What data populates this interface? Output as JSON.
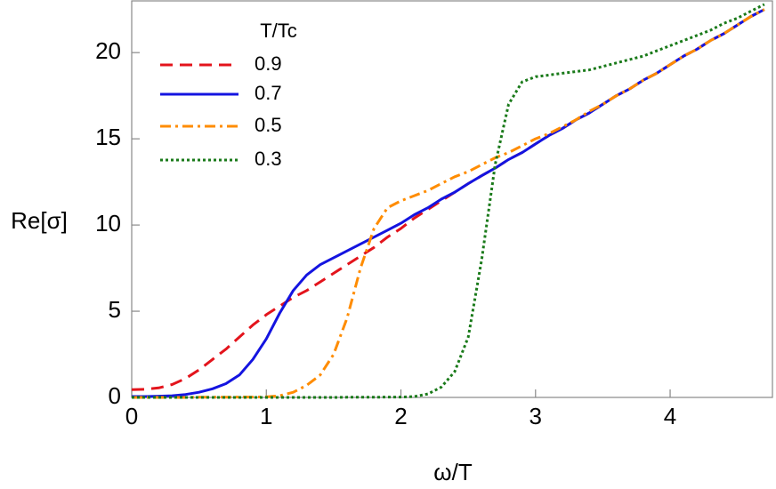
{
  "chart_data": {
    "type": "line",
    "x_label": "ω/T",
    "y_label": "Re[σ]",
    "legend_title": "T/Tc",
    "legend": "top-left",
    "xlim": [
      0,
      4.76
    ],
    "ylim": [
      0,
      23
    ],
    "xticks": [
      0,
      1,
      2,
      3,
      4
    ],
    "yticks": [
      0,
      5,
      10,
      15,
      20
    ],
    "x": [
      0,
      0.1,
      0.2,
      0.3,
      0.4,
      0.5,
      0.6,
      0.7,
      0.8,
      0.9,
      1.0,
      1.1,
      1.2,
      1.3,
      1.4,
      1.5,
      1.6,
      1.7,
      1.8,
      1.9,
      2.0,
      2.1,
      2.2,
      2.3,
      2.4,
      2.5,
      2.6,
      2.7,
      2.8,
      2.9,
      3.0,
      3.1,
      3.2,
      3.3,
      3.4,
      3.5,
      3.6,
      3.7,
      3.8,
      3.9,
      4.0,
      4.1,
      4.2,
      4.3,
      4.4,
      4.5,
      4.6,
      4.7
    ],
    "series": [
      {
        "name": "0.9",
        "color": "#e3141c",
        "dash": "14,8",
        "values": [
          0.45,
          0.47,
          0.55,
          0.75,
          1.1,
          1.6,
          2.2,
          2.8,
          3.5,
          4.2,
          4.8,
          5.3,
          5.8,
          6.2,
          6.7,
          7.2,
          7.7,
          8.2,
          8.7,
          9.3,
          9.8,
          10.4,
          10.9,
          11.4,
          11.9,
          12.4,
          12.86,
          13.3,
          13.8,
          14.2,
          14.7,
          15.2,
          15.6,
          16.1,
          16.5,
          17.0,
          17.5,
          17.9,
          18.4,
          18.8,
          19.3,
          19.8,
          20.2,
          20.7,
          21.1,
          21.6,
          22.1,
          22.5
        ]
      },
      {
        "name": "0.7",
        "color": "#1414e0",
        "dash": "",
        "values": [
          0.05,
          0.05,
          0.07,
          0.1,
          0.17,
          0.3,
          0.5,
          0.8,
          1.3,
          2.2,
          3.4,
          4.9,
          6.2,
          7.1,
          7.7,
          8.1,
          8.5,
          8.9,
          9.3,
          9.7,
          10.1,
          10.6,
          11.0,
          11.5,
          11.9,
          12.4,
          12.86,
          13.3,
          13.8,
          14.2,
          14.7,
          15.2,
          15.6,
          16.1,
          16.5,
          17.0,
          17.5,
          17.9,
          18.4,
          18.8,
          19.3,
          19.8,
          20.2,
          20.7,
          21.1,
          21.6,
          22.1,
          22.5
        ]
      },
      {
        "name": "0.5",
        "color": "#ff8c00",
        "dash": "12,5,3,5",
        "values": [
          0,
          0,
          0,
          0,
          0,
          0.01,
          0.01,
          0.01,
          0.02,
          0.02,
          0.03,
          0.1,
          0.3,
          0.7,
          1.3,
          2.5,
          4.6,
          7.5,
          9.8,
          11.0,
          11.4,
          11.7,
          12.0,
          12.4,
          12.8,
          13.1,
          13.5,
          13.9,
          14.2,
          14.6,
          15.0,
          15.3,
          15.7,
          16.1,
          16.6,
          17.0,
          17.5,
          17.9,
          18.4,
          18.8,
          19.3,
          19.8,
          20.2,
          20.7,
          21.1,
          21.6,
          22.1,
          22.5
        ]
      },
      {
        "name": "0.3",
        "color": "#1a7a1a",
        "dash": "3,3",
        "values": [
          0,
          0,
          0,
          0,
          0,
          0,
          0,
          0,
          0,
          0,
          0,
          0,
          0,
          0,
          0,
          0,
          0.01,
          0.01,
          0.01,
          0.02,
          0.02,
          0.05,
          0.2,
          0.6,
          1.5,
          3.5,
          8,
          13.5,
          17.0,
          18.3,
          18.6,
          18.7,
          18.8,
          18.9,
          19.0,
          19.2,
          19.4,
          19.6,
          19.8,
          20.1,
          20.4,
          20.7,
          21.0,
          21.3,
          21.7,
          22.0,
          22.4,
          22.8
        ]
      }
    ]
  }
}
